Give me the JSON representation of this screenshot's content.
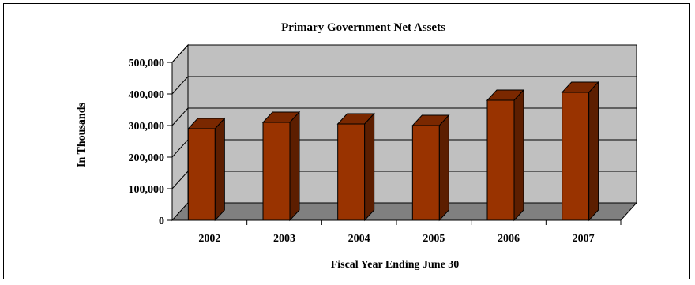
{
  "chart_data": {
    "type": "bar",
    "title": "Primary Government Net Assets",
    "xlabel": "Fiscal Year Ending June 30",
    "ylabel": "In Thousands",
    "categories": [
      "2002",
      "2003",
      "2004",
      "2005",
      "2006",
      "2007"
    ],
    "series": [
      {
        "values": [
          290000,
          310000,
          305000,
          300000,
          380000,
          405000
        ]
      }
    ],
    "ylim": [
      0,
      500000
    ],
    "yticks": [
      "0",
      "100,000",
      "200,000",
      "300,000",
      "400,000",
      "500,000"
    ],
    "grid": true,
    "legend": "none",
    "colors": {
      "bar_front": "#993300",
      "bar_top": "#7a2800",
      "bar_side": "#5c1e00",
      "wall": "#c0c0c0",
      "floor": "#808080"
    }
  }
}
